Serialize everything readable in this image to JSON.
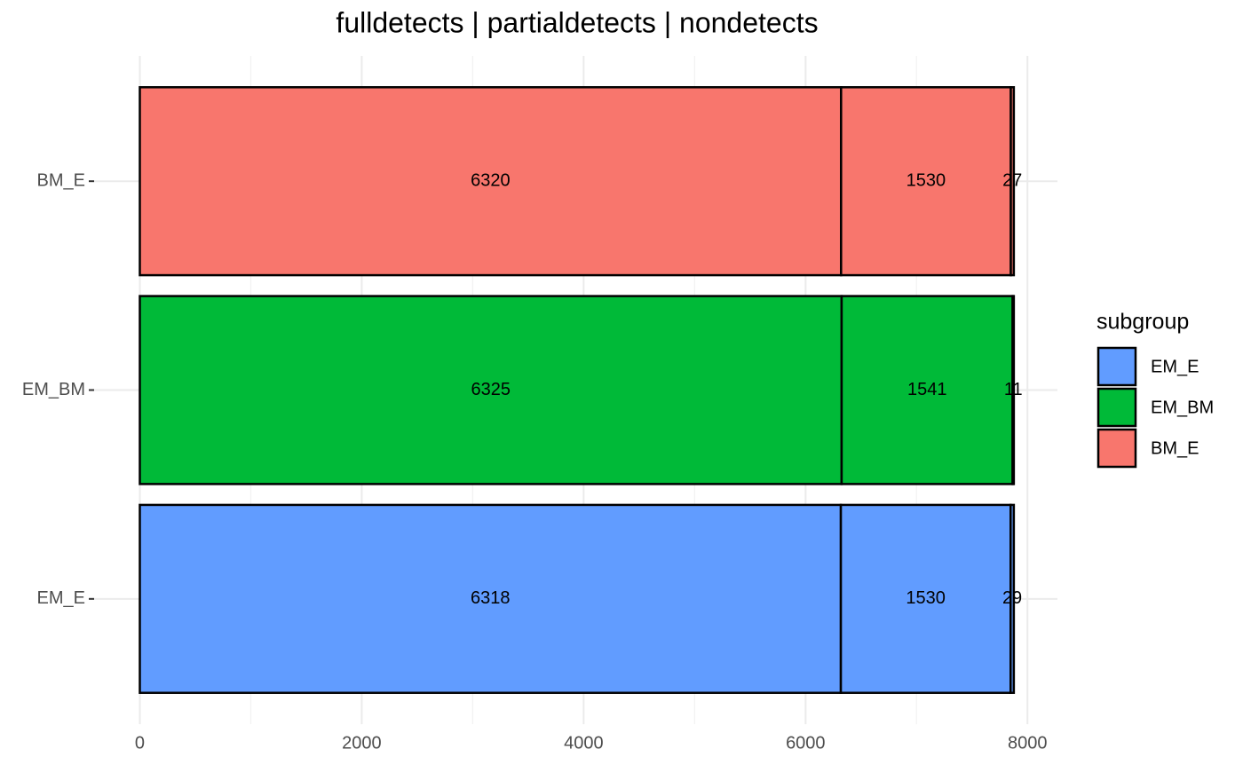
{
  "chart_data": {
    "type": "stacked-bar",
    "orientation": "horizontal",
    "title": "fulldetects  |  partialdetects  |  nondetects",
    "categories": [
      "EM_E",
      "EM_BM",
      "BM_E"
    ],
    "colors": [
      "#619cff",
      "#00ba38",
      "#f8766d"
    ],
    "values": [
      [
        6318,
        1530,
        29
      ],
      [
        6325,
        1541,
        11
      ],
      [
        6320,
        1530,
        27
      ]
    ],
    "xlim": [
      -420,
      8270
    ],
    "xticks": [
      0,
      2000,
      4000,
      6000,
      8000
    ],
    "grid": true,
    "legend_title": "subgroup",
    "legend_position": "right"
  }
}
